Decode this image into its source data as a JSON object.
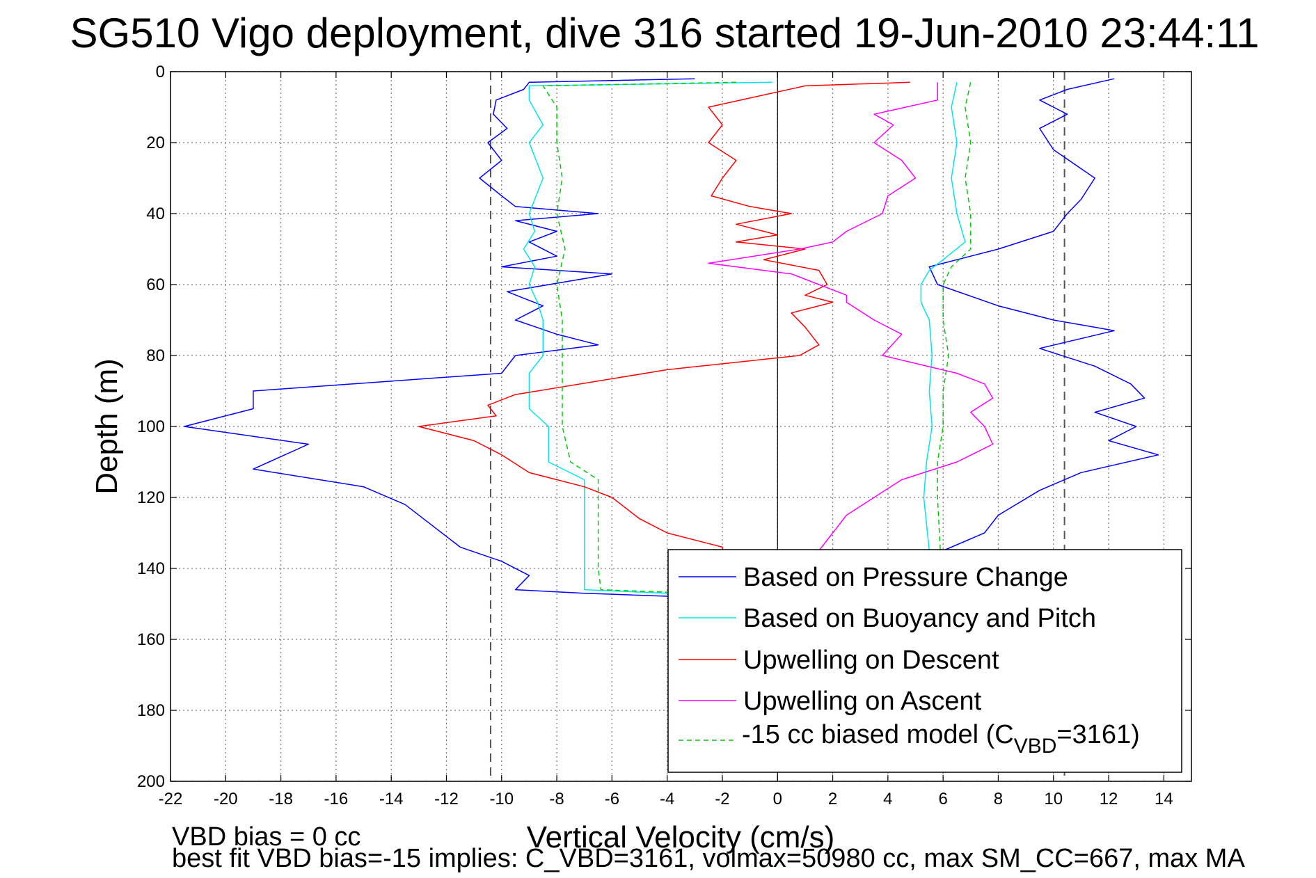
{
  "chart_data": {
    "type": "line",
    "title": "SG510 Vigo deployment, dive 316 started 19-Jun-2010 23:44:11",
    "xlabel": "Vertical Velocity (cm/s)",
    "ylabel": "Depth (m)",
    "xlim": [
      -22,
      15
    ],
    "ylim": [
      0,
      200
    ],
    "y_reversed": true,
    "grid": true,
    "x_ticks": [
      "-22",
      "-20",
      "-18",
      "-16",
      "-14",
      "-12",
      "-10",
      "-8",
      "-6",
      "-4",
      "-2",
      "0",
      "2",
      "4",
      "6",
      "8",
      "10",
      "12",
      "14"
    ],
    "y_ticks": [
      "0",
      "20",
      "40",
      "60",
      "80",
      "100",
      "120",
      "140",
      "160",
      "180",
      "200"
    ],
    "reference_lines": {
      "vertical_dashed": [
        -10.4,
        10.4
      ],
      "vertical_solid": [
        0
      ]
    },
    "legend_position": "bottom-right",
    "series": [
      {
        "name": "Based on Pressure Change",
        "color": "#0000ff",
        "style": "solid",
        "points": [
          [
            -3,
            2
          ],
          [
            -9,
            3
          ],
          [
            -9.2,
            5
          ],
          [
            -10.2,
            8
          ],
          [
            -10.3,
            12
          ],
          [
            -9.8,
            16
          ],
          [
            -10.5,
            20
          ],
          [
            -10,
            25
          ],
          [
            -10.8,
            30
          ],
          [
            -10,
            35
          ],
          [
            -9.5,
            38
          ],
          [
            -6.5,
            40
          ],
          [
            -9.5,
            42
          ],
          [
            -8,
            45
          ],
          [
            -9,
            48
          ],
          [
            -8,
            52
          ],
          [
            -10,
            55
          ],
          [
            -6,
            57
          ],
          [
            -9.8,
            62
          ],
          [
            -8.5,
            66
          ],
          [
            -9.5,
            70
          ],
          [
            -8,
            74
          ],
          [
            -6.5,
            77
          ],
          [
            -9.5,
            80
          ],
          [
            -10,
            85
          ],
          [
            -19,
            90
          ],
          [
            -19,
            95
          ],
          [
            -21.5,
            100
          ],
          [
            -17,
            105
          ],
          [
            -19,
            112
          ],
          [
            -15,
            117
          ],
          [
            -13.5,
            122
          ],
          [
            -12.5,
            128
          ],
          [
            -11.5,
            134
          ],
          [
            -10,
            138
          ],
          [
            -9,
            142
          ],
          [
            -9.5,
            146
          ],
          [
            -7,
            147
          ],
          [
            -3.5,
            148
          ],
          [
            -2.5,
            150
          ],
          [
            -3,
            152
          ],
          [
            12.2,
            2
          ],
          [
            10.5,
            5
          ],
          [
            9.5,
            8
          ],
          [
            10.5,
            12
          ],
          [
            9.5,
            16
          ],
          [
            10,
            22
          ],
          [
            11.5,
            30
          ],
          [
            11,
            36
          ],
          [
            10.5,
            40
          ],
          [
            10,
            45
          ],
          [
            8,
            50
          ],
          [
            5.5,
            55
          ],
          [
            5.8,
            60
          ],
          [
            8,
            66
          ],
          [
            10,
            70
          ],
          [
            12.2,
            73
          ],
          [
            9.5,
            78
          ],
          [
            11.5,
            83
          ],
          [
            12.8,
            88
          ],
          [
            13.3,
            92
          ],
          [
            11.5,
            96
          ],
          [
            13,
            100
          ],
          [
            12,
            104
          ],
          [
            13.8,
            108
          ],
          [
            11,
            113
          ],
          [
            9.5,
            118
          ],
          [
            8,
            125
          ],
          [
            7.5,
            130
          ],
          [
            6,
            135
          ]
        ]
      },
      {
        "name": "Based on Buoyancy and Pitch",
        "color": "#00e5ee",
        "style": "solid",
        "points": [
          [
            -0.2,
            3
          ],
          [
            -9,
            4
          ],
          [
            -9,
            8
          ],
          [
            -8.5,
            15
          ],
          [
            -9,
            20
          ],
          [
            -8.5,
            30
          ],
          [
            -9,
            40
          ],
          [
            -8.8,
            45
          ],
          [
            -9.2,
            50
          ],
          [
            -8.8,
            55
          ],
          [
            -9,
            60
          ],
          [
            -8.7,
            65
          ],
          [
            -8.5,
            70
          ],
          [
            -8.5,
            80
          ],
          [
            -9,
            85
          ],
          [
            -9,
            95
          ],
          [
            -8.3,
            100
          ],
          [
            -8.3,
            110
          ],
          [
            -7,
            115
          ],
          [
            -7,
            120
          ],
          [
            -7,
            140
          ],
          [
            -7,
            146
          ],
          [
            -4,
            147
          ],
          [
            6.5,
            3
          ],
          [
            6.3,
            10
          ],
          [
            6.5,
            20
          ],
          [
            6.3,
            30
          ],
          [
            6.5,
            40
          ],
          [
            6.8,
            48
          ],
          [
            6,
            53
          ],
          [
            5.5,
            56
          ],
          [
            5.2,
            60
          ],
          [
            5.2,
            65
          ],
          [
            5.5,
            70
          ],
          [
            5.6,
            80
          ],
          [
            5.5,
            90
          ],
          [
            5.6,
            100
          ],
          [
            5.4,
            110
          ],
          [
            5.3,
            120
          ],
          [
            5.5,
            135
          ]
        ]
      },
      {
        "name": "Upwelling on Descent",
        "color": "#ff0000",
        "style": "solid",
        "points": [
          [
            4.8,
            3
          ],
          [
            1,
            4
          ],
          [
            -2.5,
            10
          ],
          [
            -2,
            15
          ],
          [
            -2.5,
            20
          ],
          [
            -1.5,
            25
          ],
          [
            -2,
            30
          ],
          [
            -2.4,
            35
          ],
          [
            -1,
            38
          ],
          [
            0.5,
            40
          ],
          [
            -1.5,
            43
          ],
          [
            0,
            46
          ],
          [
            -1.5,
            48
          ],
          [
            1,
            50
          ],
          [
            -0.5,
            53
          ],
          [
            1.5,
            56
          ],
          [
            1.8,
            60
          ],
          [
            1,
            63
          ],
          [
            2,
            65
          ],
          [
            0.5,
            68
          ],
          [
            1,
            72
          ],
          [
            1.5,
            77
          ],
          [
            0.8,
            80
          ],
          [
            -4,
            84
          ],
          [
            -9.5,
            91
          ],
          [
            -10.5,
            94
          ],
          [
            -10.2,
            97
          ],
          [
            -13,
            100
          ],
          [
            -11,
            104
          ],
          [
            -10,
            108
          ],
          [
            -9,
            113
          ],
          [
            -7,
            117
          ],
          [
            -6,
            120
          ],
          [
            -5,
            126
          ],
          [
            -4,
            130
          ],
          [
            -2,
            134
          ],
          [
            -2,
            136
          ]
        ]
      },
      {
        "name": "Upwelling on Ascent",
        "color": "#ff00ff",
        "style": "solid",
        "points": [
          [
            5.8,
            3
          ],
          [
            5.8,
            8
          ],
          [
            3.5,
            12
          ],
          [
            4.2,
            15
          ],
          [
            3.5,
            20
          ],
          [
            4.5,
            25
          ],
          [
            5,
            30
          ],
          [
            4,
            35
          ],
          [
            3.8,
            40
          ],
          [
            2.5,
            45
          ],
          [
            2,
            48
          ],
          [
            0.8,
            50
          ],
          [
            -2.5,
            54
          ],
          [
            0.5,
            57
          ],
          [
            1.5,
            60
          ],
          [
            2.5,
            63
          ],
          [
            2.5,
            65
          ],
          [
            3.5,
            70
          ],
          [
            4.5,
            74
          ],
          [
            3.8,
            80
          ],
          [
            6.5,
            85
          ],
          [
            7.5,
            88
          ],
          [
            7.8,
            92
          ],
          [
            7,
            96
          ],
          [
            7.5,
            100
          ],
          [
            7.8,
            105
          ],
          [
            6.5,
            110
          ],
          [
            4.5,
            115
          ],
          [
            3.5,
            120
          ],
          [
            2.5,
            125
          ],
          [
            2,
            130
          ],
          [
            1.5,
            135
          ]
        ]
      },
      {
        "name": "-15 cc biased model (C_VBD=3161)",
        "color": "#00cc00",
        "style": "dashed",
        "points": [
          [
            -1.5,
            3
          ],
          [
            -8.5,
            4
          ],
          [
            -8,
            10
          ],
          [
            -8,
            20
          ],
          [
            -7.8,
            30
          ],
          [
            -8,
            40
          ],
          [
            -7.7,
            50
          ],
          [
            -8,
            60
          ],
          [
            -7.8,
            70
          ],
          [
            -7.8,
            80
          ],
          [
            -7.8,
            90
          ],
          [
            -7.8,
            100
          ],
          [
            -7.5,
            110
          ],
          [
            -6.5,
            115
          ],
          [
            -6.5,
            120
          ],
          [
            -6.5,
            140
          ],
          [
            -6.4,
            146
          ],
          [
            -3,
            147
          ],
          [
            7,
            3
          ],
          [
            6.8,
            10
          ],
          [
            7,
            20
          ],
          [
            6.8,
            30
          ],
          [
            7,
            40
          ],
          [
            7,
            50
          ],
          [
            6.3,
            55
          ],
          [
            6,
            60
          ],
          [
            6,
            70
          ],
          [
            6.2,
            80
          ],
          [
            6,
            90
          ],
          [
            6,
            100
          ],
          [
            5.8,
            110
          ],
          [
            5.8,
            120
          ],
          [
            5.9,
            135
          ]
        ]
      }
    ],
    "legend_label_pieces": {
      "pressure": "Based on Pressure Change",
      "buoyancy": "Based on Buoyancy and Pitch",
      "descent": "Upwelling on Descent",
      "ascent": "Upwelling on Ascent",
      "model_prefix": "-15 cc biased model (C",
      "model_sub": "VBD",
      "model_suffix": "=3161)"
    },
    "annotations": {
      "vbd_bias": "VBD bias = 0 cc",
      "best_fit": "best fit VBD bias=-15 implies: C_VBD=3161, volmax=50980 cc, max SM_CC=667, max MA"
    }
  }
}
